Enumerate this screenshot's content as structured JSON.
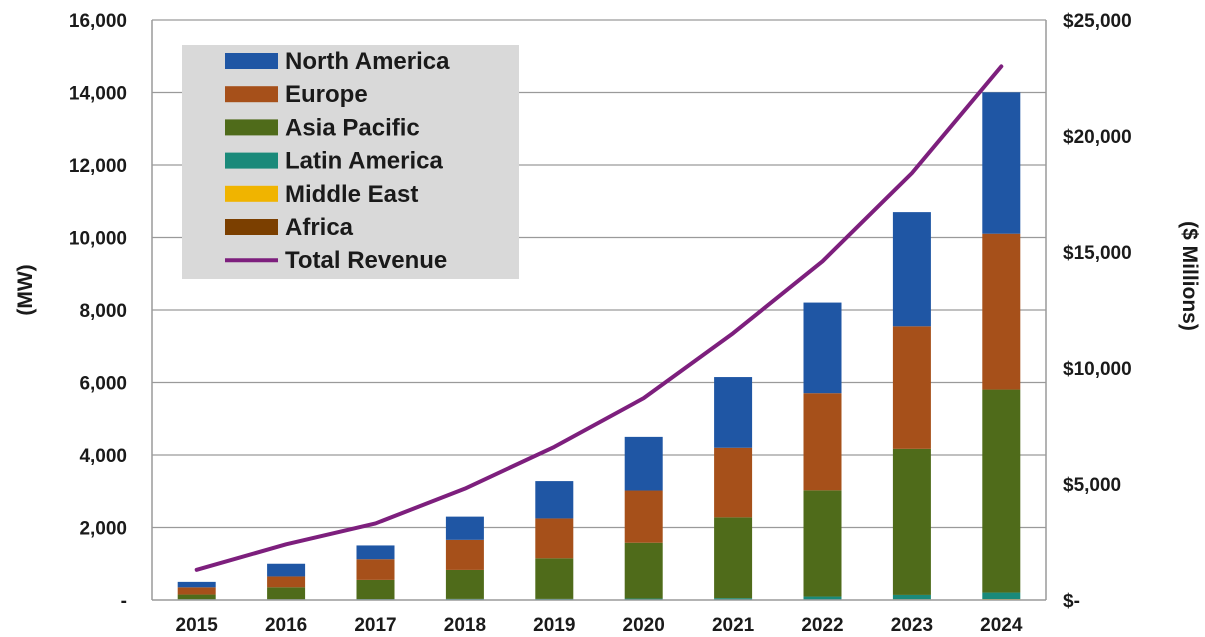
{
  "chart_data": {
    "type": "bar",
    "stacked": true,
    "title": "",
    "xlabel": "",
    "ylabel": "(MW)",
    "y2label": "($ Millions)",
    "ylim": [
      0,
      16000
    ],
    "y2lim": [
      0,
      25000
    ],
    "grid": true,
    "legend_position": "top-left",
    "categories": [
      "2015",
      "2016",
      "2017",
      "2018",
      "2019",
      "2020",
      "2021",
      "2022",
      "2023",
      "2024"
    ],
    "y_ticks": [
      "-",
      "2,000",
      "4,000",
      "6,000",
      "8,000",
      "10,000",
      "12,000",
      "14,000",
      "16,000"
    ],
    "y2_ticks": [
      "$-",
      "$5,000",
      "$10,000",
      "$15,000",
      "$20,000",
      "$25,000"
    ],
    "series": [
      {
        "name": "Africa",
        "color": "#7b3f00",
        "values": [
          5,
          5,
          5,
          5,
          5,
          5,
          5,
          5,
          10,
          10
        ]
      },
      {
        "name": "Middle East",
        "color": "#f0b400",
        "values": [
          5,
          5,
          5,
          5,
          5,
          5,
          5,
          10,
          10,
          15
        ]
      },
      {
        "name": "Latin America",
        "color": "#1a8a7a",
        "values": [
          10,
          10,
          15,
          20,
          20,
          30,
          40,
          80,
          120,
          180
        ]
      },
      {
        "name": "Asia Pacific",
        "color": "#4f6b1a",
        "values": [
          130,
          330,
          530,
          800,
          1120,
          1540,
          2230,
          2930,
          4030,
          5600
        ]
      },
      {
        "name": "Europe",
        "color": "#a6501a",
        "values": [
          200,
          300,
          570,
          830,
          1100,
          1440,
          1920,
          2680,
          3380,
          4300
        ]
      },
      {
        "name": "North America",
        "color": "#1f56a4",
        "values": [
          150,
          350,
          380,
          640,
          1030,
          1480,
          1950,
          2500,
          3150,
          3900
        ]
      }
    ],
    "line_series": {
      "name": "Total Revenue",
      "color": "#7d1f7d",
      "axis": "right",
      "values": [
        1300,
        2400,
        3300,
        4800,
        6600,
        8700,
        11500,
        14600,
        18400,
        23000
      ]
    },
    "legend_order": [
      "North America",
      "Europe",
      "Asia Pacific",
      "Latin America",
      "Middle East",
      "Africa",
      "Total Revenue"
    ]
  }
}
